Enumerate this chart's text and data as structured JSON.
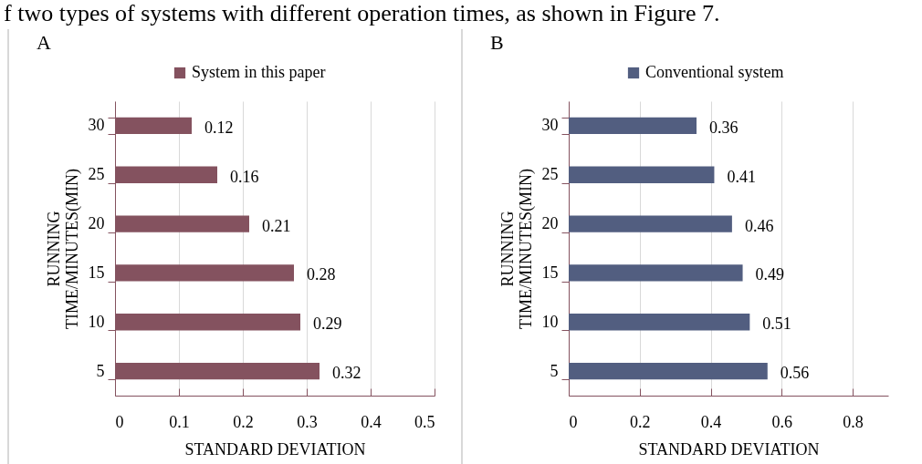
{
  "chart_data": [
    {
      "type": "bar",
      "orientation": "horizontal",
      "title": "A",
      "xlabel": "STANDARD DEVIATION",
      "ylabel": "RUNNING\nTIME/MINUTES(MIN)",
      "annotations": [
        "f two types of systems with different operation times, as shown in Figure 7."
      ],
      "categories": [
        "30",
        "25",
        "20",
        "15",
        "10",
        "5"
      ],
      "series": [
        {
          "name": "System in this paper",
          "color": "#84525f",
          "values": [
            0.12,
            0.16,
            0.21,
            0.28,
            0.29,
            0.32
          ]
        }
      ],
      "xlim": [
        0,
        0.5
      ],
      "xticks": [
        0,
        0.1,
        0.2,
        0.3,
        0.4,
        0.5
      ],
      "grid": "x",
      "legend": "top",
      "data_labels": true
    },
    {
      "type": "bar",
      "orientation": "horizontal",
      "title": "B",
      "xlabel": "STANDARD DEVIATION",
      "ylabel": "RUNNING\nTIME/MINUTES(MIN)",
      "categories": [
        "30",
        "25",
        "20",
        "15",
        "10",
        "5"
      ],
      "series": [
        {
          "name": "Conventional system",
          "color": "#525e80",
          "values": [
            0.36,
            0.41,
            0.46,
            0.49,
            0.51,
            0.56
          ]
        }
      ],
      "xlim": [
        0,
        0.9
      ],
      "xticks": [
        0,
        0.2,
        0.4,
        0.6,
        0.8
      ],
      "grid": "x",
      "legend": "top",
      "data_labels": true
    }
  ]
}
